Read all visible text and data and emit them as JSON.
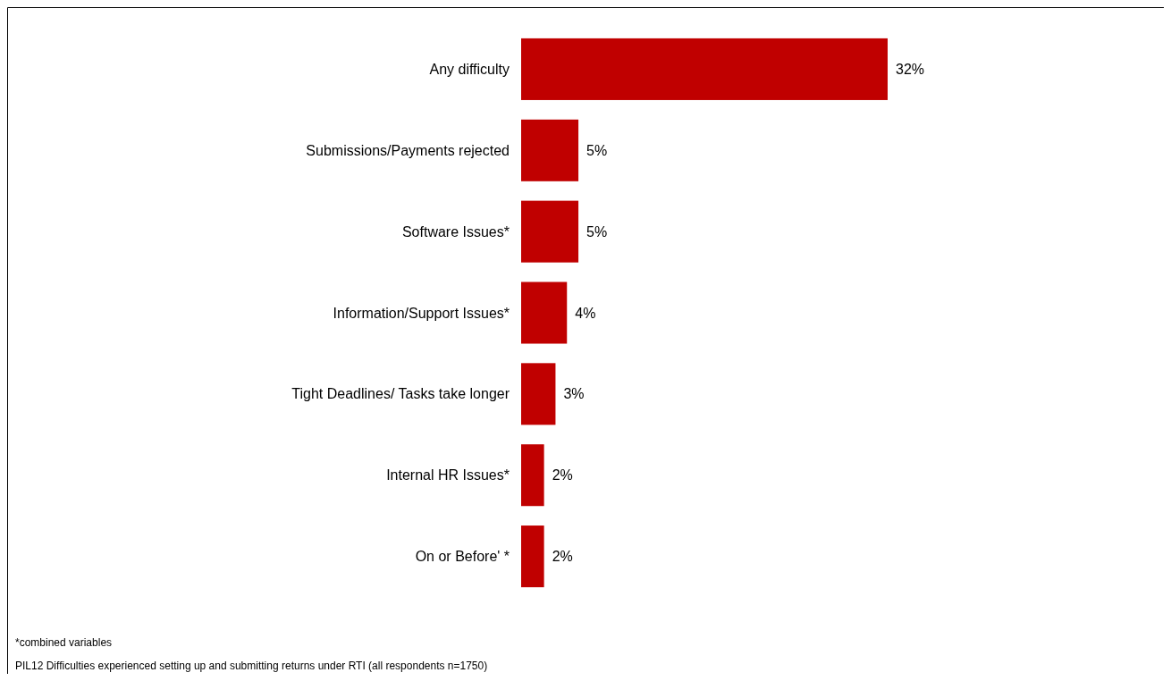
{
  "chart_data": {
    "type": "bar",
    "orientation": "horizontal",
    "categories": [
      "Any difficulty",
      "Submissions/Payments rejected",
      "Software Issues*",
      "Information/Support Issues*",
      "Tight Deadlines/ Tasks take longer",
      "Internal HR Issues*",
      "On or Before' *"
    ],
    "values": [
      32,
      5,
      5,
      4,
      3,
      2,
      2
    ],
    "value_labels": [
      "32%",
      "5%",
      "5%",
      "4%",
      "3%",
      "2%",
      "2%"
    ],
    "color": "#c00000",
    "annotations": [
      "*combined variables",
      "PIL12 Difficulties experienced setting up and submitting returns under RTI  (all respondents n=1750)"
    ]
  }
}
